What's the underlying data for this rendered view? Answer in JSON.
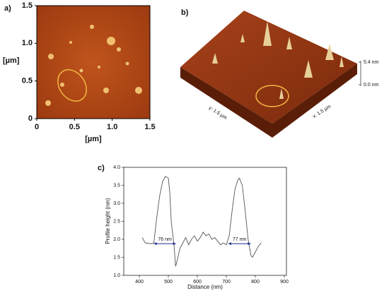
{
  "chart_data": [
    {
      "type": "image",
      "label": "a)",
      "xlabel": "[µm]",
      "ylabel": "[µm]",
      "xlim": [
        0,
        1.5
      ],
      "ylim": [
        0,
        1.5
      ],
      "xticks": [
        0,
        0.5,
        {
          "value": 1,
          "label": "1.0"
        },
        1.5
      ],
      "yticks": [
        0,
        0.5,
        {
          "value": 1,
          "label": "1.0"
        },
        1.5
      ]
    },
    {
      "type": "surface",
      "label": "b)",
      "xlabel": "x: 1.5 µm",
      "ylabel": "y: 1.5 µm",
      "zlim": [
        0,
        5.4
      ],
      "zticks": [
        {
          "value": 0,
          "label": "0.0 nm"
        },
        {
          "value": 5.4,
          "label": "5.4 nm"
        }
      ]
    },
    {
      "type": "line",
      "label": "c)",
      "xlabel": "Distance (nm)",
      "ylabel": "Profile height (nm)",
      "xlim": [
        400,
        900
      ],
      "ylim": [
        1,
        4
      ],
      "xticks": [
        400,
        500,
        600,
        700,
        800,
        900
      ],
      "yticks": [
        {
          "value": 1,
          "label": "1.0"
        },
        1.5,
        {
          "value": 2,
          "label": "2.0"
        },
        2.5,
        {
          "value": 3,
          "label": "3.0"
        },
        3.5,
        {
          "value": 4,
          "label": "4.0"
        }
      ],
      "color": "#555555",
      "x": [
        410,
        420,
        440,
        450,
        460,
        470,
        480,
        490,
        500,
        505,
        510,
        520,
        525,
        530,
        540,
        550,
        560,
        570,
        580,
        590,
        600,
        610,
        620,
        630,
        640,
        650,
        660,
        670,
        680,
        690,
        700,
        710,
        720,
        730,
        740,
        745,
        755,
        765,
        775,
        785,
        790,
        800,
        810,
        820
      ],
      "values": [
        2.05,
        1.9,
        1.88,
        1.9,
        2.6,
        3.2,
        3.6,
        3.75,
        3.7,
        3.3,
        2.5,
        1.8,
        1.25,
        1.4,
        1.75,
        1.9,
        2.05,
        1.85,
        2.0,
        2.1,
        1.95,
        2.05,
        2.2,
        2.1,
        2.15,
        2.0,
        2.05,
        1.95,
        1.85,
        1.9,
        1.85,
        2.1,
        2.8,
        3.4,
        3.65,
        3.7,
        3.5,
        2.8,
        2.0,
        1.55,
        1.5,
        1.65,
        1.8,
        1.9
      ],
      "annotations": [
        {
          "text": "76 nm",
          "x": [
            450,
            526
          ],
          "y": 1.88
        },
        {
          "text": "77 nm",
          "x": [
            707,
            784
          ],
          "y": 1.88
        }
      ]
    }
  ]
}
